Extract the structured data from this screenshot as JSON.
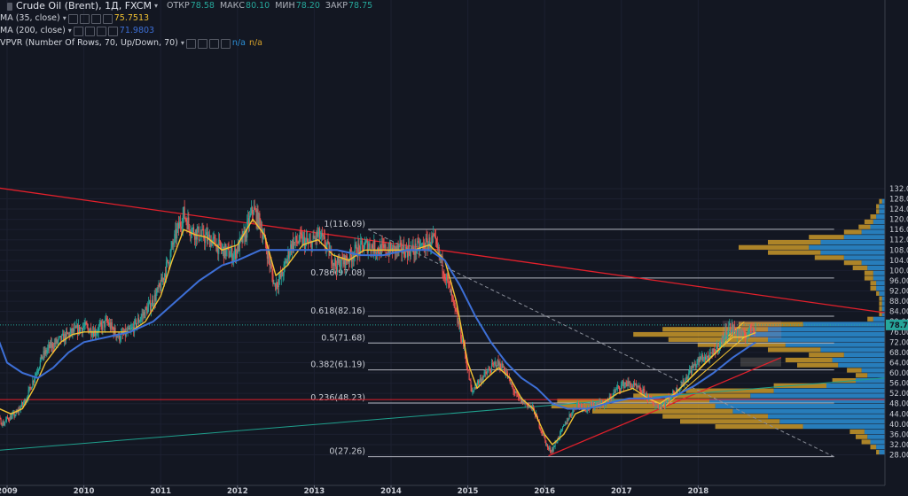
{
  "header": {
    "symbol": "Crude Oil (Brent), 1Д, FXCM",
    "ohlc": [
      {
        "label": "ОТКР",
        "value": "78.58"
      },
      {
        "label": "МАКС",
        "value": "80.10"
      },
      {
        "label": "МИН",
        "value": "78.20"
      },
      {
        "label": "ЗАКР",
        "value": "78.75"
      }
    ]
  },
  "indicators": [
    {
      "label": "MA (35, close)",
      "value": "75.7513",
      "color": "#f2c232"
    },
    {
      "label": "MA (200, close)",
      "value": "71.9803",
      "color": "#3d6fd6"
    },
    {
      "label": "VPVR (Number Of Rows, 70, Up/Down, 70)",
      "value": "n/a",
      "value2": "n/a"
    }
  ],
  "colors": {
    "background": "#131722",
    "candle_up": "#26a69a",
    "candle_down": "#ef5350",
    "ma35": "#f2c232",
    "ma200": "#3d6fd6",
    "trend": "#e2202b",
    "vp_up": "#2b8fd6",
    "vp_down": "#d4a02a",
    "fib": "#b2b5be"
  },
  "chart_data": {
    "type": "line",
    "price_axis": {
      "ticks": [
        28,
        32,
        36,
        40,
        44,
        48,
        52,
        56,
        60,
        64,
        68,
        72,
        76,
        80,
        84,
        88,
        92,
        96,
        100,
        104,
        108,
        112,
        116,
        120,
        124,
        128,
        132
      ],
      "range": [
        26,
        133
      ],
      "last_price": "78.75"
    },
    "time_axis": {
      "ticks": [
        "2009",
        "2010",
        "2011",
        "2012",
        "2013",
        "2014",
        "2015",
        "2016",
        "2017",
        "2018"
      ]
    },
    "fibonacci": [
      {
        "label": "1(116.09)",
        "level": 116.09
      },
      {
        "label": "0.786(97.08)",
        "level": 97.08
      },
      {
        "label": "0.618(82.16)",
        "level": 82.16
      },
      {
        "label": "0.5(71.68)",
        "level": 71.68
      },
      {
        "label": "0.382(61.19)",
        "level": 61.19
      },
      {
        "label": "0.236(48.23)",
        "level": 48.23
      },
      {
        "label": "0(27.26)",
        "level": 27.26
      }
    ],
    "price_path": [
      [
        2008.55,
        62
      ],
      [
        2008.7,
        52
      ],
      [
        2008.82,
        44
      ],
      [
        2008.95,
        40
      ],
      [
        2009.0,
        42
      ],
      [
        2009.12,
        44
      ],
      [
        2009.25,
        50
      ],
      [
        2009.35,
        58
      ],
      [
        2009.45,
        66
      ],
      [
        2009.55,
        70
      ],
      [
        2009.7,
        73
      ],
      [
        2009.85,
        76
      ],
      [
        2010.0,
        78
      ],
      [
        2010.15,
        76
      ],
      [
        2010.3,
        80
      ],
      [
        2010.45,
        74
      ],
      [
        2010.6,
        76
      ],
      [
        2010.75,
        82
      ],
      [
        2010.9,
        88
      ],
      [
        2011.0,
        94
      ],
      [
        2011.1,
        104
      ],
      [
        2011.2,
        114
      ],
      [
        2011.3,
        122
      ],
      [
        2011.4,
        116
      ],
      [
        2011.5,
        114
      ],
      [
        2011.65,
        112
      ],
      [
        2011.8,
        108
      ],
      [
        2011.95,
        106
      ],
      [
        2012.1,
        114
      ],
      [
        2012.2,
        124
      ],
      [
        2012.3,
        118
      ],
      [
        2012.4,
        106
      ],
      [
        2012.48,
        94
      ],
      [
        2012.58,
        98
      ],
      [
        2012.7,
        110
      ],
      [
        2012.82,
        112
      ],
      [
        2012.95,
        110
      ],
      [
        2013.05,
        114
      ],
      [
        2013.15,
        110
      ],
      [
        2013.28,
        102
      ],
      [
        2013.42,
        104
      ],
      [
        2013.55,
        108
      ],
      [
        2013.7,
        110
      ],
      [
        2013.85,
        108
      ],
      [
        2014.0,
        108
      ],
      [
        2014.15,
        108
      ],
      [
        2014.3,
        108
      ],
      [
        2014.45,
        110
      ],
      [
        2014.55,
        112
      ],
      [
        2014.65,
        104
      ],
      [
        2014.75,
        94
      ],
      [
        2014.85,
        82
      ],
      [
        2014.95,
        70
      ],
      [
        2015.05,
        52
      ],
      [
        2015.12,
        56
      ],
      [
        2015.25,
        60
      ],
      [
        2015.37,
        64
      ],
      [
        2015.47,
        62
      ],
      [
        2015.55,
        56
      ],
      [
        2015.65,
        50
      ],
      [
        2015.75,
        48
      ],
      [
        2015.85,
        46
      ],
      [
        2015.95,
        38
      ],
      [
        2016.05,
        30
      ],
      [
        2016.1,
        30
      ],
      [
        2016.2,
        36
      ],
      [
        2016.3,
        42
      ],
      [
        2016.42,
        48
      ],
      [
        2016.55,
        46
      ],
      [
        2016.68,
        48
      ],
      [
        2016.8,
        48
      ],
      [
        2016.95,
        54
      ],
      [
        2017.05,
        56
      ],
      [
        2017.15,
        55
      ],
      [
        2017.3,
        52
      ],
      [
        2017.45,
        47
      ],
      [
        2017.55,
        48
      ],
      [
        2017.68,
        52
      ],
      [
        2017.8,
        56
      ],
      [
        2017.92,
        62
      ],
      [
        2018.05,
        66
      ],
      [
        2018.15,
        66
      ],
      [
        2018.3,
        72
      ],
      [
        2018.4,
        78
      ],
      [
        2018.5,
        76
      ],
      [
        2018.6,
        74
      ],
      [
        2018.7,
        78
      ],
      [
        2018.75,
        78.75
      ]
    ],
    "series": [
      {
        "name": "MA (35, close)",
        "values": [
          [
            2008.75,
            58
          ],
          [
            2008.9,
            46
          ],
          [
            2009.05,
            44
          ],
          [
            2009.2,
            46
          ],
          [
            2009.35,
            54
          ],
          [
            2009.5,
            64
          ],
          [
            2009.7,
            72
          ],
          [
            2009.85,
            75
          ],
          [
            2010.0,
            76
          ],
          [
            2010.2,
            76
          ],
          [
            2010.4,
            76
          ],
          [
            2010.6,
            76
          ],
          [
            2010.8,
            80
          ],
          [
            2011.0,
            90
          ],
          [
            2011.15,
            104
          ],
          [
            2011.3,
            116
          ],
          [
            2011.45,
            114
          ],
          [
            2011.6,
            113
          ],
          [
            2011.8,
            108
          ],
          [
            2012.0,
            110
          ],
          [
            2012.2,
            120
          ],
          [
            2012.35,
            114
          ],
          [
            2012.5,
            98
          ],
          [
            2012.65,
            102
          ],
          [
            2012.85,
            110
          ],
          [
            2013.05,
            112
          ],
          [
            2013.25,
            106
          ],
          [
            2013.45,
            104
          ],
          [
            2013.65,
            108
          ],
          [
            2013.85,
            108
          ],
          [
            2014.05,
            108
          ],
          [
            2014.3,
            108
          ],
          [
            2014.5,
            110
          ],
          [
            2014.7,
            104
          ],
          [
            2014.85,
            88
          ],
          [
            2015.0,
            64
          ],
          [
            2015.12,
            54
          ],
          [
            2015.25,
            58
          ],
          [
            2015.4,
            62
          ],
          [
            2015.55,
            58
          ],
          [
            2015.7,
            50
          ],
          [
            2015.85,
            46
          ],
          [
            2016.0,
            36
          ],
          [
            2016.1,
            32
          ],
          [
            2016.25,
            36
          ],
          [
            2016.4,
            44
          ],
          [
            2016.55,
            46
          ],
          [
            2016.75,
            48
          ],
          [
            2016.95,
            52
          ],
          [
            2017.15,
            54
          ],
          [
            2017.35,
            50
          ],
          [
            2017.5,
            48
          ],
          [
            2017.7,
            52
          ],
          [
            2017.9,
            58
          ],
          [
            2018.1,
            64
          ],
          [
            2018.3,
            70
          ],
          [
            2018.45,
            74
          ],
          [
            2018.6,
            74
          ],
          [
            2018.75,
            75.75
          ]
        ]
      },
      {
        "name": "MA (200, close)",
        "values": [
          [
            2008.55,
            96
          ],
          [
            2008.7,
            86
          ],
          [
            2008.85,
            76
          ],
          [
            2009.0,
            64
          ],
          [
            2009.2,
            60
          ],
          [
            2009.4,
            58
          ],
          [
            2009.6,
            62
          ],
          [
            2009.8,
            68
          ],
          [
            2010.0,
            72
          ],
          [
            2010.3,
            74
          ],
          [
            2010.6,
            76
          ],
          [
            2010.9,
            80
          ],
          [
            2011.2,
            88
          ],
          [
            2011.5,
            96
          ],
          [
            2011.8,
            102
          ],
          [
            2012.0,
            104
          ],
          [
            2012.3,
            108
          ],
          [
            2012.6,
            108
          ],
          [
            2012.9,
            108
          ],
          [
            2013.3,
            108
          ],
          [
            2013.6,
            106
          ],
          [
            2013.9,
            106
          ],
          [
            2014.2,
            108
          ],
          [
            2014.5,
            108
          ],
          [
            2014.7,
            104
          ],
          [
            2014.9,
            94
          ],
          [
            2015.1,
            82
          ],
          [
            2015.3,
            72
          ],
          [
            2015.5,
            64
          ],
          [
            2015.7,
            58
          ],
          [
            2015.9,
            54
          ],
          [
            2016.1,
            48
          ],
          [
            2016.3,
            46
          ],
          [
            2016.55,
            46
          ],
          [
            2016.8,
            48
          ],
          [
            2017.1,
            50
          ],
          [
            2017.4,
            50
          ],
          [
            2017.7,
            51
          ],
          [
            2017.95,
            55
          ],
          [
            2018.2,
            60
          ],
          [
            2018.45,
            66
          ],
          [
            2018.65,
            70
          ],
          [
            2018.75,
            71.98
          ]
        ]
      }
    ],
    "volume_profile": {
      "rows": [
        [
          29,
          0.02,
          0.01
        ],
        [
          31,
          0.03,
          0.02
        ],
        [
          33,
          0.05,
          0.03
        ],
        [
          35,
          0.06,
          0.04
        ],
        [
          37,
          0.07,
          0.05
        ],
        [
          39,
          0.28,
          0.3
        ],
        [
          41,
          0.36,
          0.34
        ],
        [
          43,
          0.4,
          0.36
        ],
        [
          45,
          0.52,
          0.48
        ],
        [
          47,
          0.58,
          0.56
        ],
        [
          49,
          0.6,
          0.52
        ],
        [
          51,
          0.46,
          0.4
        ],
        [
          53,
          0.38,
          0.3
        ],
        [
          55,
          0.2,
          0.18
        ],
        [
          57,
          0.1,
          0.08
        ],
        [
          59,
          0.06,
          0.04
        ],
        [
          61,
          0.08,
          0.05
        ],
        [
          63,
          0.16,
          0.14
        ],
        [
          65,
          0.18,
          0.16
        ],
        [
          67,
          0.14,
          0.12
        ],
        [
          69,
          0.22,
          0.18
        ],
        [
          71,
          0.34,
          0.3
        ],
        [
          73,
          0.4,
          0.34
        ],
        [
          75,
          0.46,
          0.4
        ],
        [
          77,
          0.4,
          0.36
        ],
        [
          79,
          0.28,
          0.22
        ],
        [
          81,
          0.04,
          0.02
        ],
        [
          83,
          0.01,
          0.01
        ],
        [
          85,
          0.01,
          0.01
        ],
        [
          87,
          0.01,
          0.01
        ],
        [
          89,
          0.01,
          0.01
        ],
        [
          91,
          0.02,
          0.01
        ],
        [
          93,
          0.03,
          0.02
        ],
        [
          95,
          0.03,
          0.02
        ],
        [
          97,
          0.04,
          0.03
        ],
        [
          99,
          0.04,
          0.03
        ],
        [
          101,
          0.06,
          0.05
        ],
        [
          103,
          0.08,
          0.06
        ],
        [
          105,
          0.14,
          0.1
        ],
        [
          107,
          0.22,
          0.18
        ],
        [
          109,
          0.26,
          0.24
        ],
        [
          111,
          0.22,
          0.18
        ],
        [
          113,
          0.14,
          0.12
        ],
        [
          115,
          0.08,
          0.06
        ],
        [
          117,
          0.05,
          0.04
        ],
        [
          119,
          0.04,
          0.03
        ],
        [
          121,
          0.03,
          0.02
        ],
        [
          123,
          0.02,
          0.01
        ],
        [
          125,
          0.02,
          0.01
        ],
        [
          127,
          0.01,
          0.01
        ]
      ]
    }
  }
}
